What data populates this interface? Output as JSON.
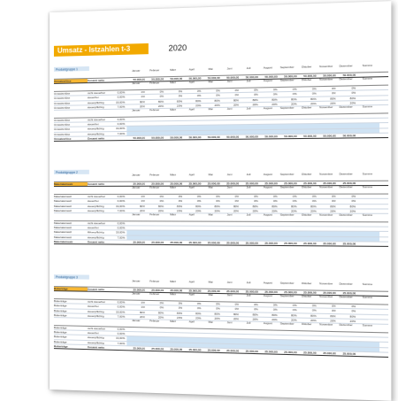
{
  "title": "Umsatz - Istzahlen t-3",
  "year": "2020",
  "months": [
    "Januar",
    "Februar",
    "März",
    "April",
    "Mai",
    "Juni",
    "Juli",
    "August",
    "September",
    "Oktober",
    "November",
    "Dezember"
  ],
  "sum_label": "Summe",
  "currency": "€",
  "sections": [
    {
      "title": "Produktgruppe 1",
      "total_label": "Umsatzerlöse",
      "total_sub": "Gesamt netto",
      "value": "50.000,00"
    },
    {
      "title": "Produktgruppe 2",
      "total_label": "Materialeinsatz",
      "total_sub": "Gesamt netto",
      "value": "25.000,00"
    },
    {
      "title": "Produktgruppe 3",
      "total_label": "Bukerträge",
      "total_sub": "Gesamt netto",
      "value": "25.000,00"
    }
  ],
  "sub_rows": [
    "nicht steuerbar",
    "steuerfrei",
    "steuerpflichtig",
    "steuerpflichtig"
  ],
  "rates": [
    "0,00%",
    "0,00%",
    "19,00%",
    "7,00%"
  ],
  "percents": [
    "0%",
    "0%",
    "80%",
    "20%"
  ]
}
